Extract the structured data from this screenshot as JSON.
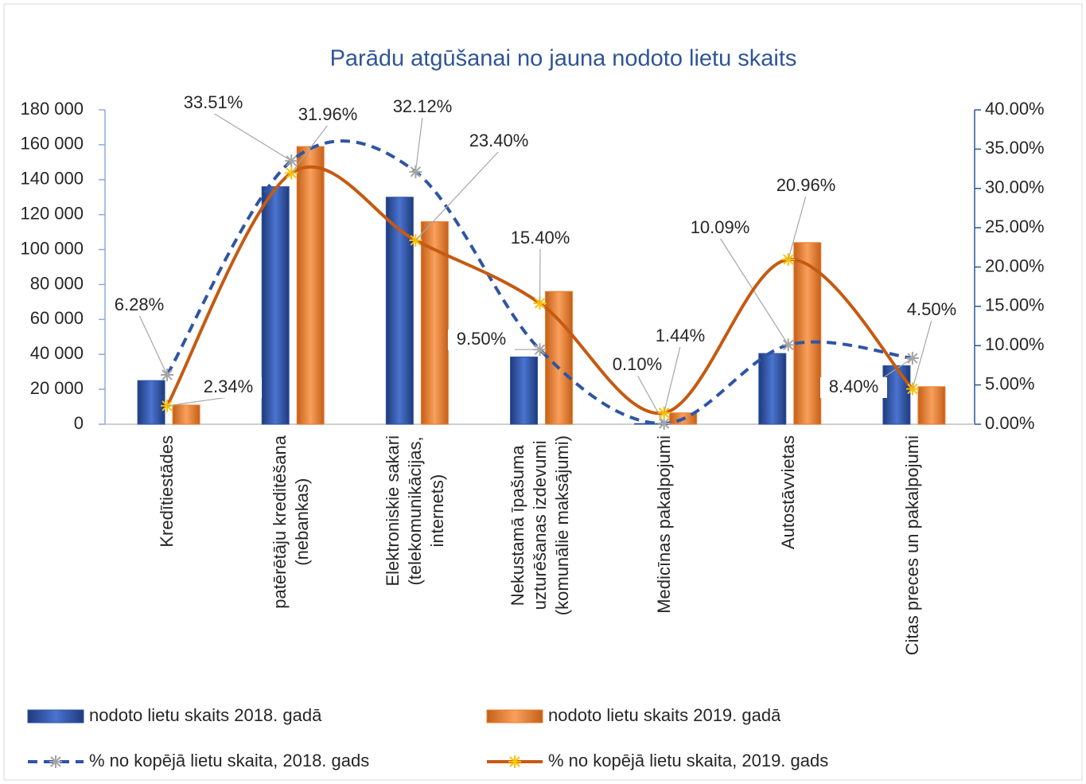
{
  "chart_data": {
    "type": "bar",
    "title": "Parādu atgūšanai no jauna nodoto lietu skaits",
    "categories": [
      "Kredītiestādes",
      "patērētāju kreditēšana\n(nebankas)",
      "Elektroniskie sakari\n(telekomunikācijas,\ninternets)",
      "Nekustamā īpašuma\nuzturēšanas izdevumi\n(komunālie maksājumi)",
      "Medicīnas pakalpojumi",
      "Autostāvvietas",
      "Citas preces un pakalpojumi"
    ],
    "series": [
      {
        "name": "nodoto lietu skaits 2018. gadā",
        "type": "bar",
        "color": "#2e54a8",
        "values": [
          25000,
          136000,
          130000,
          38500,
          400,
          40500,
          33500
        ]
      },
      {
        "name": "nodoto lietu skaits 2019. gadā",
        "type": "bar",
        "color": "#ed7d31",
        "values": [
          11000,
          159000,
          116000,
          76000,
          6500,
          104000,
          21500
        ]
      },
      {
        "name": "% no kopējā lietu skaita, 2018. gads",
        "type": "line",
        "axis": "y2",
        "color": "#2f55a4",
        "marker_color": "#a5a5a5",
        "dashed": true,
        "values": [
          6.28,
          33.51,
          32.12,
          9.5,
          0.1,
          10.09,
          8.4
        ],
        "value_labels": [
          "6.28%",
          "33.51%",
          "32.12%",
          "9.50%",
          "0.10%",
          "10.09%",
          "8.40%"
        ]
      },
      {
        "name": "% no kopējā lietu skaita, 2019. gads",
        "type": "line",
        "axis": "y2",
        "color": "#c55a11",
        "marker_color": "#ffc000",
        "dashed": false,
        "values": [
          2.34,
          31.96,
          23.4,
          15.4,
          1.44,
          20.96,
          4.5
        ],
        "value_labels": [
          "2.34%",
          "31.96%",
          "23.40%",
          "15.40%",
          "1.44%",
          "20.96%",
          "4.50%"
        ]
      }
    ],
    "ylim": [
      0,
      180000
    ],
    "yticks": [
      0,
      {
        "value": 20000,
        "label": "20 000"
      },
      {
        "value": 40000,
        "label": "40 000"
      },
      {
        "value": 60000,
        "label": "60 000"
      },
      {
        "value": 80000,
        "label": "80 000"
      },
      {
        "value": 100000,
        "label": "100 000"
      },
      {
        "value": 120000,
        "label": "120 000"
      },
      {
        "value": 140000,
        "label": "140 000"
      },
      {
        "value": 160000,
        "label": "160 000"
      },
      {
        "value": 180000,
        "label": "180 000"
      }
    ],
    "y2lim": [
      0,
      40
    ],
    "y2ticks": [
      {
        "value": 0,
        "label": "0.00%"
      },
      {
        "value": 5,
        "label": "5.00%"
      },
      {
        "value": 10,
        "label": "10.00%"
      },
      {
        "value": 15,
        "label": "15.00%"
      },
      {
        "value": 20,
        "label": "20.00%"
      },
      {
        "value": 25,
        "label": "25.00%"
      },
      {
        "value": 30,
        "label": "30.00%"
      },
      {
        "value": 35,
        "label": "35.00%"
      },
      {
        "value": 40,
        "label": "40.00%"
      }
    ],
    "legend": "bottom"
  }
}
